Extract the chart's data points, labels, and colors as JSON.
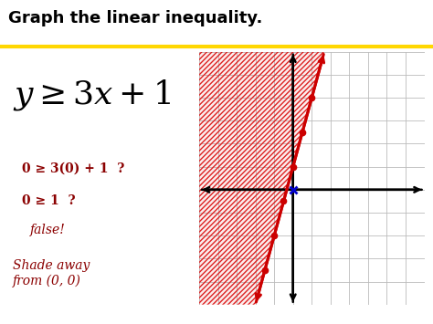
{
  "title": "Graph the linear inequality.",
  "title_color": "#000000",
  "title_fontsize": 13,
  "title_fontweight": "bold",
  "bg_color": "#ffffff",
  "yellow_line_color": "#FFD700",
  "eq_fontsize": 26,
  "eq_color": "#000000",
  "check_line1": "0 ≥ 3(0) + 1  ?",
  "check_line2": "0 ≥ 1  ?",
  "check_line3": "false!",
  "check_color": "#8B0000",
  "check_fontsize": 10,
  "shade_text": "Shade away\nfrom (0, 0)",
  "shade_color": "#8B0000",
  "shade_fontsize": 10,
  "grid_color": "#bbbbbb",
  "axis_color": "#000000",
  "line_color": "#cc0000",
  "dot_color": "#cc0000",
  "shade_fill_color": "#dd2222",
  "blue_dot_color": "#0000cc",
  "graph_xlim": [
    -5,
    7
  ],
  "graph_ylim": [
    -5,
    6
  ],
  "slope": 3,
  "intercept": 1,
  "dot_points": [
    [
      0,
      1
    ],
    [
      -1,
      -2
    ],
    [
      1,
      4
    ],
    [
      -0.5,
      -0.5
    ],
    [
      0.5,
      2.5
    ],
    [
      -1.5,
      -3.5
    ]
  ],
  "blue_dot": [
    0,
    0
  ]
}
